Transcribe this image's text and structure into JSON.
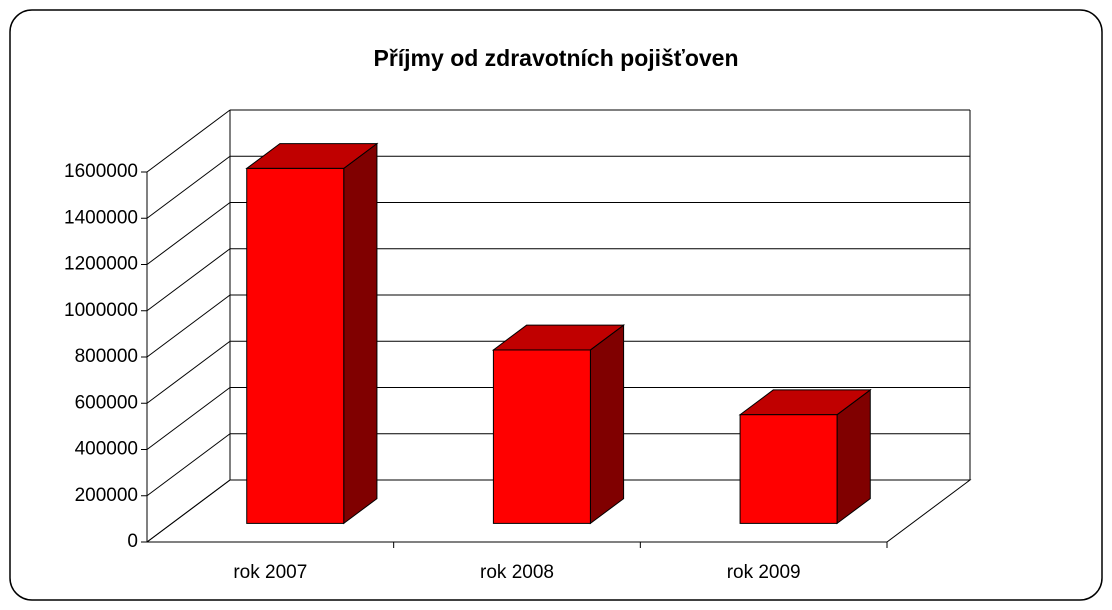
{
  "chart_data": {
    "type": "bar3d",
    "title": "Příjmy od zdravotních pojišťoven",
    "categories": [
      "rok 2007",
      "rok 2008",
      "rok 2009"
    ],
    "values": [
      1535000,
      750000,
      470000
    ],
    "color": "#ff0000",
    "top_color": "#c00000",
    "side_color": "#800000",
    "ylim": [
      0,
      1600000
    ],
    "yticks": [
      0,
      200000,
      400000,
      600000,
      800000,
      1000000,
      1200000,
      1400000,
      1600000
    ],
    "grid": true
  }
}
